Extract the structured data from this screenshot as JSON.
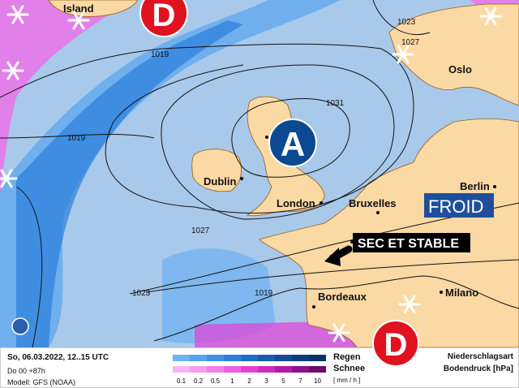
{
  "map": {
    "pressure_labels": [
      "1019",
      "1019",
      "1023",
      "1027",
      "1031",
      "1023",
      "1027",
      "1019",
      "1023"
    ],
    "cities": [
      "Island",
      "Oslo",
      "Dublin",
      "London",
      "Bruxelles",
      "Berlin",
      "Bordeaux",
      "Milano"
    ],
    "high_symbol": "A",
    "low_symbol": "D",
    "annotation_cold": "FROID",
    "annotation_dry": "SEC ET STABLE",
    "colors": {
      "sea": "#a9c9ea",
      "land": "#fbd9a5",
      "rain": "#2e7ee0",
      "snow": "#f06ee8",
      "high": "#0b4a93",
      "low": "#e0121f"
    }
  },
  "legend": {
    "date": "So, 06.03.2022, 12..15 UTC",
    "run": "Do 00 +87h",
    "model": "Modell: GFS (NOAA)",
    "rain_label": "Regen",
    "snow_label": "Schnee",
    "unit": "[ mm / h ]",
    "ticks": [
      "0.1",
      "0.2",
      "0.5",
      "1",
      "2",
      "3",
      "5",
      "7",
      "10"
    ],
    "rain_colors": [
      "#6cb4f6",
      "#55a4f0",
      "#3d92e8",
      "#2a80dc",
      "#1b6ecb",
      "#155db4",
      "#114c9a",
      "#0d3d80",
      "#0b3166"
    ],
    "snow_colors": [
      "#f9b4f4",
      "#f79cf0",
      "#f47dea",
      "#ef5fe2",
      "#e43fd6",
      "#d02ac4",
      "#b418ab",
      "#90108a",
      "#6d0a6c"
    ],
    "precip_type_label": "Niederschlagsart",
    "pressure_label": "Bodendruck [hPa]"
  }
}
